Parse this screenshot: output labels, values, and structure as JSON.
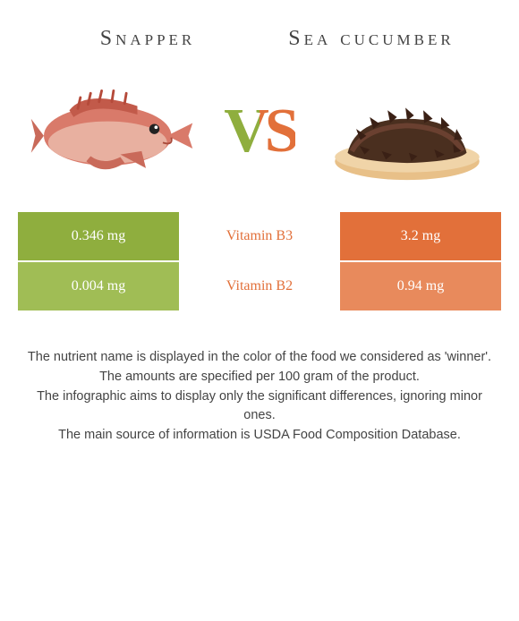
{
  "left_food": {
    "title": "Snapper",
    "color": "#8fae3e"
  },
  "right_food": {
    "title": "Sea cucumber",
    "color": "#e2703a"
  },
  "vs_label": "VS",
  "rows": [
    {
      "left": "0.346 mg",
      "name": "Vitamin B3",
      "right": "3.2 mg",
      "winner_color": "#e2703a"
    },
    {
      "left": "0.004 mg",
      "name": "Vitamin B2",
      "right": "0.94 mg",
      "winner_color": "#e2703a"
    }
  ],
  "left_shades": [
    "#8fae3e",
    "#a0bd55"
  ],
  "right_shades": [
    "#e2703a",
    "#e88a5c"
  ],
  "footer_lines": [
    "The nutrient name is displayed in the color of the food we considered as 'winner'.",
    "The amounts are specified per 100 gram of the product.",
    "The infographic aims to display only the significant differences, ignoring minor ones.",
    "The main source of information is USDA Food Composition Database."
  ]
}
